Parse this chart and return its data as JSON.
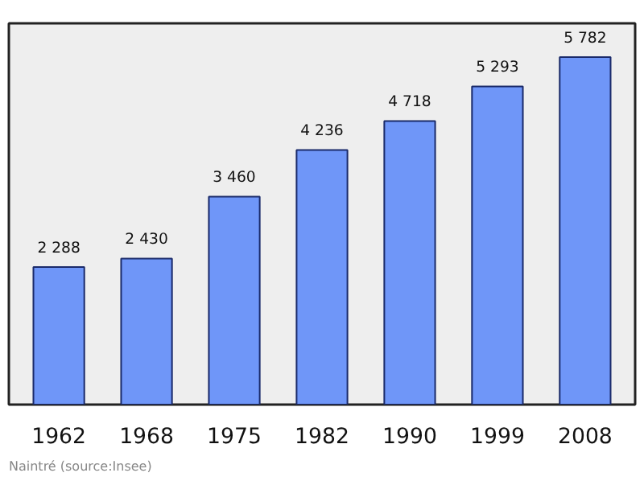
{
  "chart_data": {
    "type": "bar",
    "categories": [
      "1962",
      "1968",
      "1975",
      "1982",
      "1990",
      "1999",
      "2008"
    ],
    "values": [
      2288,
      2430,
      3460,
      4236,
      4718,
      5293,
      5782
    ],
    "value_labels": [
      "2 288",
      "2 430",
      "3 460",
      "4 236",
      "4 718",
      "5 293",
      "5 782"
    ],
    "color": "#6f96f8",
    "annotations": [
      "Naintré    (source:Insee)"
    ],
    "grid": false
  }
}
